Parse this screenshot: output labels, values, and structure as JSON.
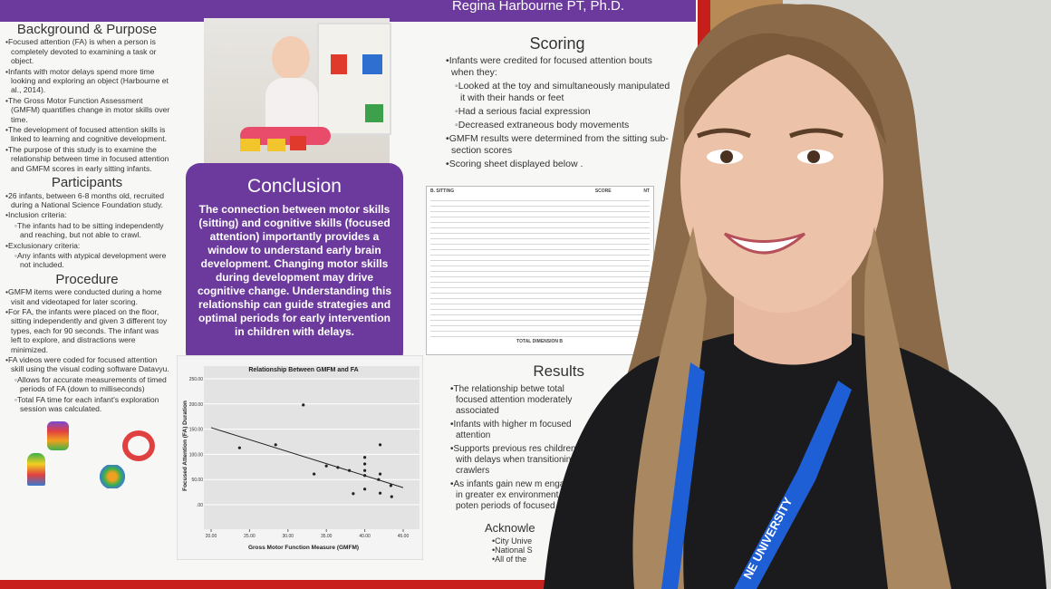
{
  "poster": {
    "header": "Regina Harbourne PT, Ph.D.",
    "background": {
      "title": "Background & Purpose",
      "items": [
        "Focused attention (FA) is when a person is completely devoted to examining a task or object.",
        "Infants with motor delays spend more time looking and exploring an object (Harbourne et al., 2014).",
        "The Gross Motor Function Assessment (GMFM) quantifies change in motor skills over time.",
        "The development of focused attention skills is linked to learning and cognitive development.",
        "The purpose of this study is to examine the relationship between time in focused attention and GMFM scores in early sitting infants."
      ]
    },
    "participants": {
      "title": "Participants",
      "items": [
        "26 infants, between 6-8 months old, recruited during a National Science Foundation study.",
        "Inclusion criteria:",
        "The infants had to be sitting independently and reaching, but not able to crawl.",
        "Exclusionary criteria:",
        "Any infants with atypical development were not included."
      ]
    },
    "procedure": {
      "title": "Procedure",
      "items": [
        "GMFM items were conducted during a home visit and videotaped for later scoring.",
        "For FA, the infants were placed on the floor, sitting independently and given 3 different toy types, each for 90 seconds. The infant was left to explore, and distractions were minimized.",
        "FA videos were coded for focused attention skill using the visual coding software Datavyu.",
        "Allows for accurate measurements of timed periods of FA (down to milliseconds)",
        "Total FA time for each infant's exploration session was calculated."
      ]
    },
    "conclusion": {
      "title": "Conclusion",
      "text": "The connection between motor skills (sitting) and cognitive skills (focused attention) importantly provides a window to understand early brain development. Changing motor skills during development may drive cognitive change. Understanding this relationship can guide strategies and optimal periods for early intervention in children with delays."
    },
    "scoring": {
      "title": "Scoring",
      "items": [
        "Infants were credited for focused attention bouts when they:",
        "Looked at the toy and simultaneously manipulated it with their hands or feet",
        "Had a serious facial expression",
        "Decreased extraneous body movements",
        "GMFM results were determined from the sitting sub-section scores",
        "Scoring sheet displayed below ."
      ]
    },
    "results": {
      "title": "Results",
      "items": [
        "The relationship betwe total focused attention moderately associated",
        "Infants with higher m focused attention",
        "Supports previous res children with delays when transitioning f crawlers",
        "As infants gain new m engage in greater ex environment, poten periods of focused"
      ]
    },
    "acknowledgements": {
      "title": "Acknowle",
      "items": [
        "City Unive",
        "National S",
        "All of the"
      ]
    },
    "scoring_sheet": {
      "title": "B. SITTING",
      "score": "SCORE",
      "nt": "NT",
      "total": "TOTAL DIMENSION B"
    }
  },
  "chart_data": {
    "type": "scatter",
    "title": "Relationship Between GMFM and FA",
    "x_label": "Gross Motor Function Measure (GMFM)",
    "y_label": "Focused Attention (FA) Duration",
    "x": [
      23.7,
      28.4,
      32,
      33.4,
      35,
      36.5,
      38,
      38.5,
      40,
      40,
      40,
      40,
      40,
      41.8,
      42,
      42,
      42,
      43.4,
      43.5
    ],
    "values": [
      113,
      119,
      198,
      61,
      77,
      74,
      68,
      22,
      94,
      81,
      68,
      58,
      31,
      50,
      119,
      61,
      23,
      38,
      16
    ],
    "trendline": {
      "x": [
        20,
        45
      ],
      "values": [
        153,
        34
      ]
    },
    "xlim": [
      20,
      45
    ],
    "ylim": [
      0,
      250
    ],
    "xticks": [
      {
        "value": 20,
        "label": "20.00"
      },
      {
        "value": 25,
        "label": "25.00"
      },
      {
        "value": 30,
        "label": "30.00"
      },
      {
        "value": 35,
        "label": "35.00"
      },
      {
        "value": 40,
        "label": "40.00"
      },
      {
        "value": 45,
        "label": "45.00"
      }
    ],
    "yticks": [
      {
        "value": 0,
        "label": ".00"
      },
      {
        "value": 50,
        "label": "50.00"
      },
      {
        "value": 100,
        "label": "100.00"
      },
      {
        "value": 150,
        "label": "150.00"
      },
      {
        "value": 200,
        "label": "200.00"
      },
      {
        "value": 250,
        "label": "250.00"
      }
    ],
    "color": "#222222",
    "grid": true
  },
  "lanyard": "NE UNIVERSITY"
}
